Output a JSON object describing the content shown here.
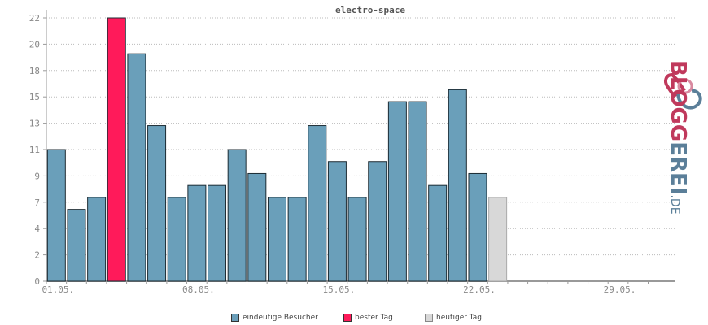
{
  "chart_data": {
    "type": "bar",
    "title": "electro-space",
    "xlabel": "",
    "ylabel": "",
    "ylim": [
      0,
      22
    ],
    "y_ticks": [
      "0",
      "2",
      "4",
      "7",
      "9",
      "11",
      "13",
      "15",
      "18",
      "20",
      "22"
    ],
    "y_tick_values": [
      0,
      2.2,
      4.4,
      6.6,
      8.8,
      11,
      13.2,
      15.4,
      17.6,
      19.8,
      22
    ],
    "x_ticks": [
      "01.05.",
      "08.05.",
      "15.05.",
      "22.05.",
      "29.05."
    ],
    "x_tick_days": [
      1,
      8,
      15,
      22,
      29
    ],
    "days": [
      1,
      2,
      3,
      4,
      5,
      6,
      7,
      8,
      9,
      10,
      11,
      12,
      13,
      14,
      15,
      16,
      17,
      18,
      19,
      20,
      21,
      22,
      23,
      24,
      25,
      26,
      27,
      28,
      29,
      30,
      31
    ],
    "values": [
      11,
      6,
      7,
      22,
      19,
      13,
      7,
      8,
      8,
      11,
      9,
      7,
      7,
      13,
      10,
      7,
      10,
      15,
      15,
      8,
      16,
      9,
      7,
      null,
      null,
      null,
      null,
      null,
      null,
      null,
      null
    ],
    "best_day_index": 3,
    "today_index": 22,
    "grid": true,
    "legend_position": "bottom",
    "colors": {
      "unique": "#6a9fba",
      "best": "#ff1a5a",
      "today": "#d8d8d8",
      "edge": "#1c2b33",
      "today_edge": "#aaaaaa",
      "grid": "#bbbbbb",
      "axis": "#999999",
      "text": "#888888",
      "title": "#555555"
    },
    "legend": [
      {
        "label": "eindeutige Besucher",
        "color": "#6a9fba"
      },
      {
        "label": "bester Tag",
        "color": "#ff1a5a"
      },
      {
        "label": "heutiger Tag",
        "color": "#d8d8d8"
      }
    ]
  },
  "logo": {
    "name_part1": "BLOGG",
    "name_part2": "EREI",
    "tld": ".DE"
  }
}
